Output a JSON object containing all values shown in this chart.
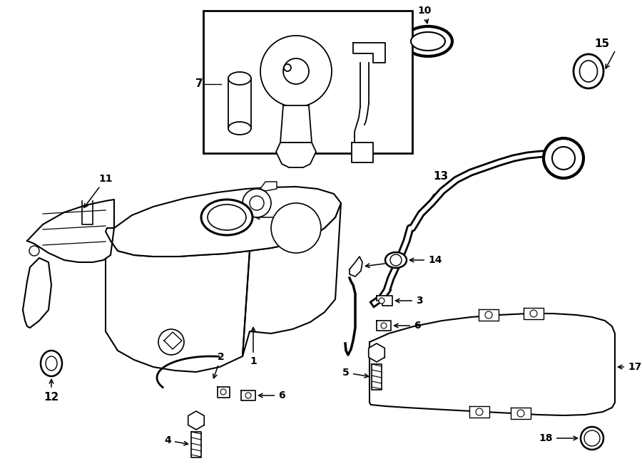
{
  "bg_color": "#ffffff",
  "lc": "#000000",
  "lw": 1.3,
  "figw": 9.0,
  "figh": 6.61,
  "dpi": 100
}
